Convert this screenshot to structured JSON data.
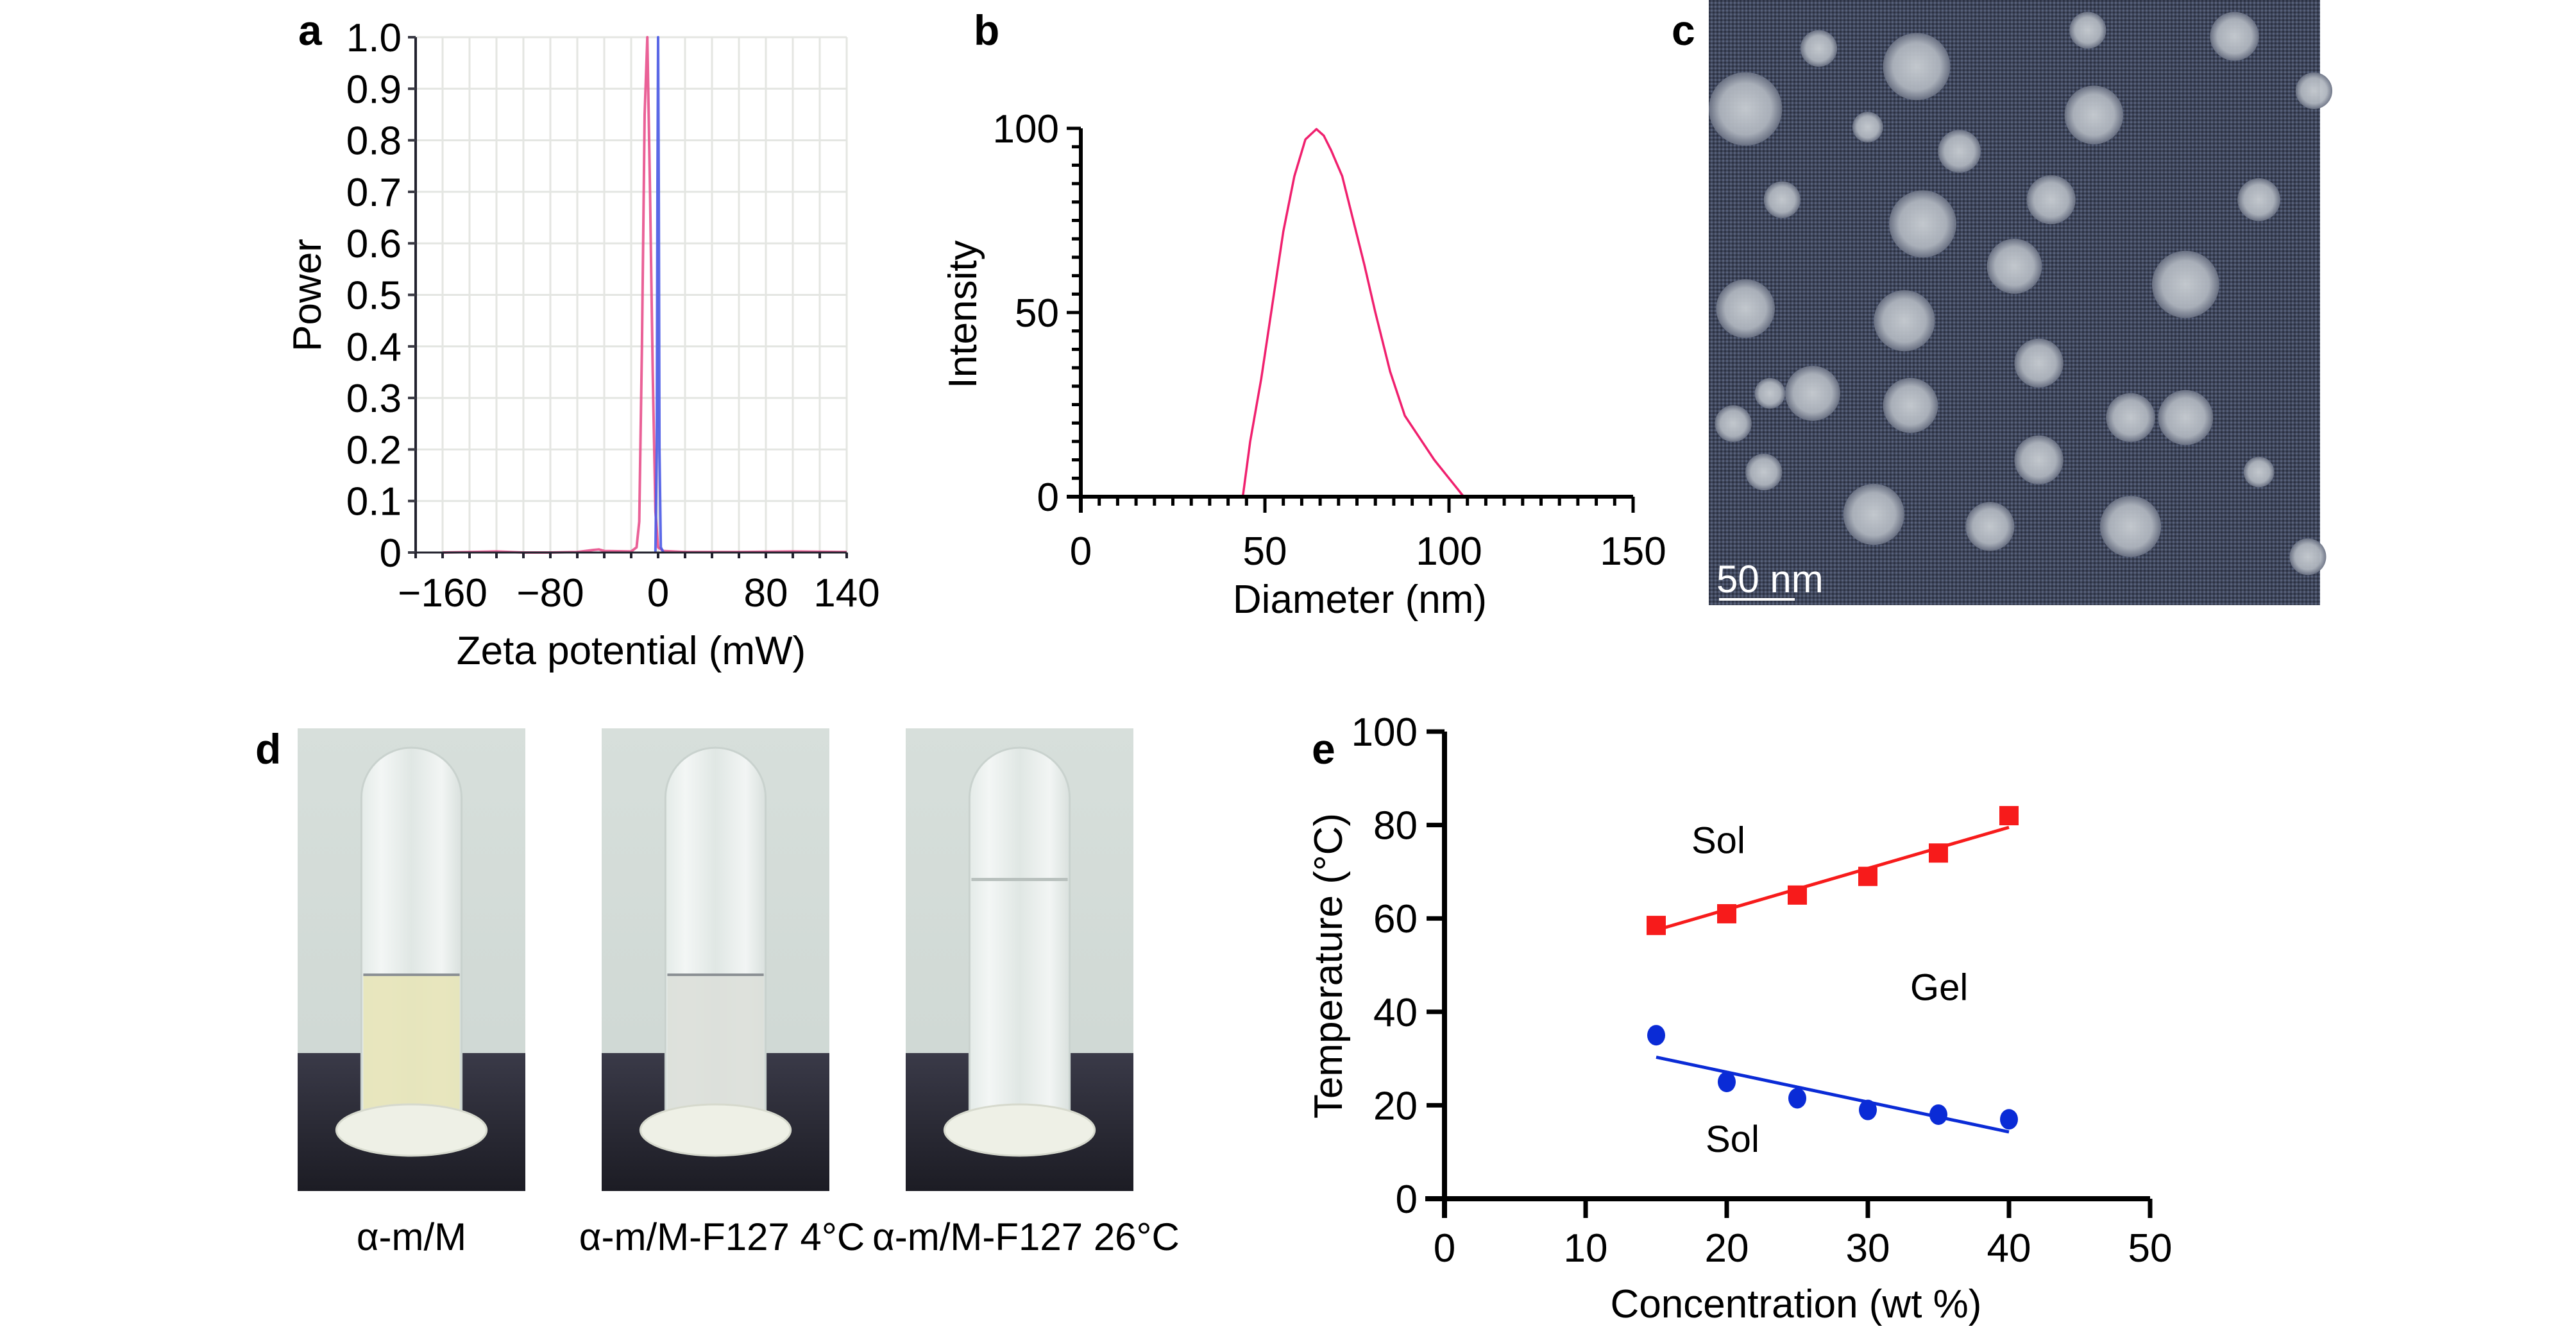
{
  "figure": {
    "panel_labels": [
      "a",
      "b",
      "c",
      "d",
      "e"
    ]
  },
  "chart_data": [
    {
      "id": "a",
      "type": "line",
      "title": "",
      "xlabel": "Zeta potential (mW)",
      "ylabel": "Power",
      "xlim": [
        -180,
        140
      ],
      "ylim": [
        0,
        1.0
      ],
      "grid": true,
      "xticks": [
        -160,
        -80,
        0,
        80,
        140
      ],
      "xtick_labels": [
        "−160",
        "−80",
        "0",
        "80",
        "140"
      ],
      "xgrid": [
        -180,
        -160,
        -140,
        -120,
        -100,
        -80,
        -60,
        -40,
        -20,
        0,
        20,
        40,
        60,
        80,
        100,
        120,
        140
      ],
      "yticks": [
        0,
        0.1,
        0.2,
        0.3,
        0.4,
        0.5,
        0.6,
        0.7,
        0.8,
        0.9,
        1.0
      ],
      "ytick_labels": [
        "0",
        "0.1",
        "0.2",
        "0.3",
        "0.4",
        "0.5",
        "0.6",
        "0.7",
        "0.8",
        "0.9",
        "1.0"
      ],
      "series": [
        {
          "name": "pink",
          "color": "#e8508c",
          "x": [
            -160,
            -140,
            -120,
            -100,
            -80,
            -60,
            -48,
            -44,
            -40,
            -20,
            -16,
            -14,
            -12,
            -10,
            -8,
            -6,
            -4,
            -2,
            0,
            4,
            20,
            60,
            100,
            140
          ],
          "y": [
            0,
            0.001,
            0.002,
            0,
            0,
            0.001,
            0.005,
            0.006,
            0.003,
            0.002,
            0.01,
            0.06,
            0.4,
            0.85,
            1.0,
            0.7,
            0.35,
            0.08,
            0.01,
            0.003,
            0.001,
            0.001,
            0.002,
            0.001
          ]
        },
        {
          "name": "blue",
          "color": "#4a5ae6",
          "x": [
            -2,
            -1,
            -0.5,
            0,
            0.5,
            1,
            2,
            4
          ],
          "y": [
            0,
            0.2,
            0.7,
            1.0,
            0.7,
            0.2,
            0.01,
            0
          ]
        }
      ]
    },
    {
      "id": "b",
      "type": "line",
      "title": "",
      "xlabel": "Diameter (nm)",
      "ylabel": "Intensity",
      "xlim": [
        0,
        150
      ],
      "ylim": [
        0,
        100
      ],
      "grid": false,
      "xticks": [
        0,
        50,
        100,
        150
      ],
      "xtick_labels": [
        "0",
        "50",
        "100",
        "150"
      ],
      "yticks": [
        0,
        50,
        100
      ],
      "ytick_labels": [
        "0",
        "50",
        "100"
      ],
      "minor_step": 5,
      "series": [
        {
          "name": "size distribution",
          "color": "#f0206e",
          "x": [
            6,
            44,
            46,
            49,
            52,
            55,
            58,
            61,
            64,
            66,
            68,
            71,
            74,
            77,
            80,
            84,
            88,
            92,
            96,
            100,
            104,
            150
          ],
          "y": [
            0,
            0,
            15,
            32,
            52,
            72,
            87,
            97,
            99.8,
            98,
            94,
            87,
            75,
            63,
            50,
            34,
            22,
            16,
            10,
            5,
            0,
            0
          ]
        }
      ]
    },
    {
      "id": "e",
      "type": "scatter",
      "title": "",
      "xlabel": "Concentration (wt %)",
      "ylabel": "Temperature (°C)",
      "xlim": [
        0,
        50
      ],
      "ylim": [
        0,
        100
      ],
      "grid": false,
      "xticks": [
        0,
        10,
        20,
        30,
        40,
        50
      ],
      "xtick_labels": [
        "0",
        "10",
        "20",
        "30",
        "40",
        "50"
      ],
      "yticks": [
        0,
        20,
        40,
        60,
        80,
        100
      ],
      "ytick_labels": [
        "0",
        "20",
        "40",
        "60",
        "80",
        "100"
      ],
      "series": [
        {
          "name": "upper transition",
          "color": "#f71b1b",
          "marker": "square",
          "x": [
            15,
            20,
            25,
            30,
            35,
            40
          ],
          "y": [
            58.5,
            61,
            65,
            69,
            74,
            82
          ],
          "fit": {
            "x": [
              15,
              40
            ],
            "y": [
              57.5,
              79.5
            ]
          }
        },
        {
          "name": "lower transition",
          "color": "#0a2bd6",
          "marker": "circle",
          "x": [
            15,
            20,
            25,
            30,
            35,
            40
          ],
          "y": [
            35,
            25,
            21.5,
            19,
            18,
            17
          ],
          "fit": {
            "x": [
              15,
              40
            ],
            "y": [
              30.3,
              14.3
            ]
          }
        }
      ],
      "annotations": [
        {
          "text": "Sol",
          "x": 17.5,
          "y": 74
        },
        {
          "text": "Gel",
          "x": 33,
          "y": 42.5
        },
        {
          "text": "Sol",
          "x": 18.5,
          "y": 10
        }
      ]
    }
  ],
  "tem_image": {
    "scale_bar_label": "50 nm",
    "background_color": "#3c4358",
    "particle_color": "#c4c9cf"
  },
  "photos": [
    {
      "caption": "α-m/M",
      "liquid_color": "#e7e4b8",
      "liquid_level": 0.38
    },
    {
      "caption": "α-m/M-F127 4°C",
      "liquid_color": "#dcdfd9",
      "liquid_level": 0.38
    },
    {
      "caption": "α-m/M-F127 26°C",
      "liquid_color": "#e4e8e8",
      "liquid_level": 0.0
    }
  ]
}
